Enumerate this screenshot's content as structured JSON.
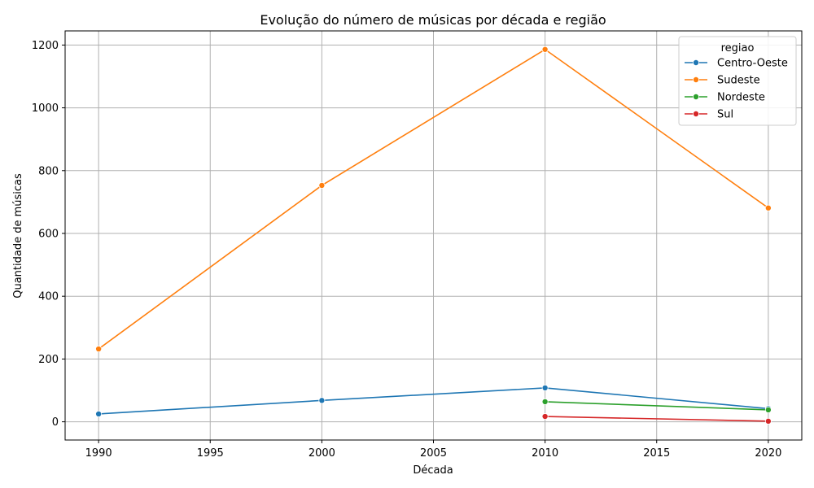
{
  "chart_data": {
    "type": "line",
    "title": "Evolução do número de músicas por década e região",
    "xlabel": "Década",
    "ylabel": "Quantidade de músicas",
    "xlim": [
      1988.5,
      2021.5
    ],
    "ylim": [
      -58,
      1245
    ],
    "xticks": [
      1990,
      1995,
      2000,
      2005,
      2010,
      2015,
      2020
    ],
    "yticks": [
      0,
      200,
      400,
      600,
      800,
      1000,
      1200
    ],
    "grid": true,
    "legend": {
      "title": "regiao",
      "position": "top-right"
    },
    "series": [
      {
        "name": "Centro-Oeste",
        "color": "#1f77b4",
        "x": [
          1990,
          2000,
          2010,
          2020
        ],
        "y": [
          25,
          68,
          108,
          42
        ]
      },
      {
        "name": "Sudeste",
        "color": "#ff7f0e",
        "x": [
          1990,
          2000,
          2010,
          2020
        ],
        "y": [
          232,
          753,
          1186,
          681
        ]
      },
      {
        "name": "Nordeste",
        "color": "#2ca02c",
        "x": [
          2010,
          2020
        ],
        "y": [
          64,
          38
        ]
      },
      {
        "name": "Sul",
        "color": "#d62728",
        "x": [
          2010,
          2020
        ],
        "y": [
          17,
          2
        ]
      }
    ]
  }
}
